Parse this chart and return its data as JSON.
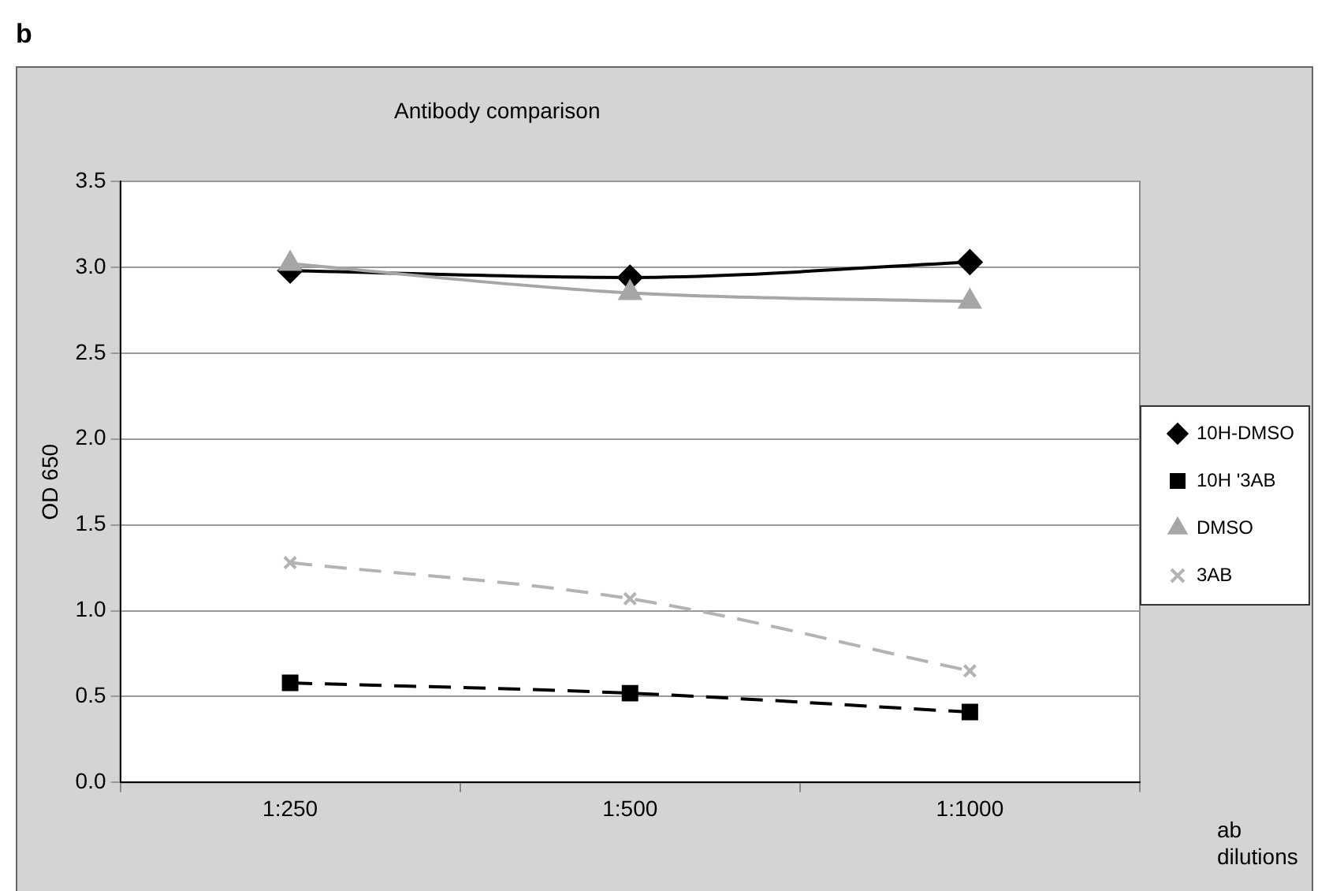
{
  "chart_data": {
    "type": "line",
    "title": "Antibody comparison",
    "xlabel": "ab dilutions",
    "ylabel": "OD 650",
    "annotations": [
      "b"
    ],
    "categories": [
      "1:250",
      "1:500",
      "1:1000"
    ],
    "series": [
      {
        "name": "10H-DMSO",
        "color": "#000000",
        "values": [
          2.98,
          2.94,
          3.03
        ],
        "marker": "diamond",
        "line_style": "solid"
      },
      {
        "name": "10H '3AB",
        "color": "#000000",
        "values": [
          0.58,
          0.52,
          0.41
        ],
        "marker": "square",
        "line_style": "dashed"
      },
      {
        "name": "DMSO",
        "color": "#a6a6a6",
        "values": [
          3.02,
          2.85,
          2.8
        ],
        "marker": "triangle",
        "line_style": "solid"
      },
      {
        "name": "3AB",
        "color": "#b3b3b3",
        "values": [
          1.28,
          1.07,
          0.65
        ],
        "marker": "cross",
        "line_style": "dashed"
      }
    ],
    "ylim": [
      0,
      3.5
    ],
    "yticks": [
      {
        "value": 0,
        "label": "0.0"
      },
      {
        "value": 0.5,
        "label": "0.5"
      },
      {
        "value": 1,
        "label": "1.0"
      },
      {
        "value": 1.5,
        "label": "1.5"
      },
      {
        "value": 2,
        "label": "2.0"
      },
      {
        "value": 2.5,
        "label": "2.5"
      },
      {
        "value": 3,
        "label": "3.0"
      },
      {
        "value": 3.5,
        "label": "3.5"
      }
    ],
    "grid": "y",
    "legend": "right"
  }
}
